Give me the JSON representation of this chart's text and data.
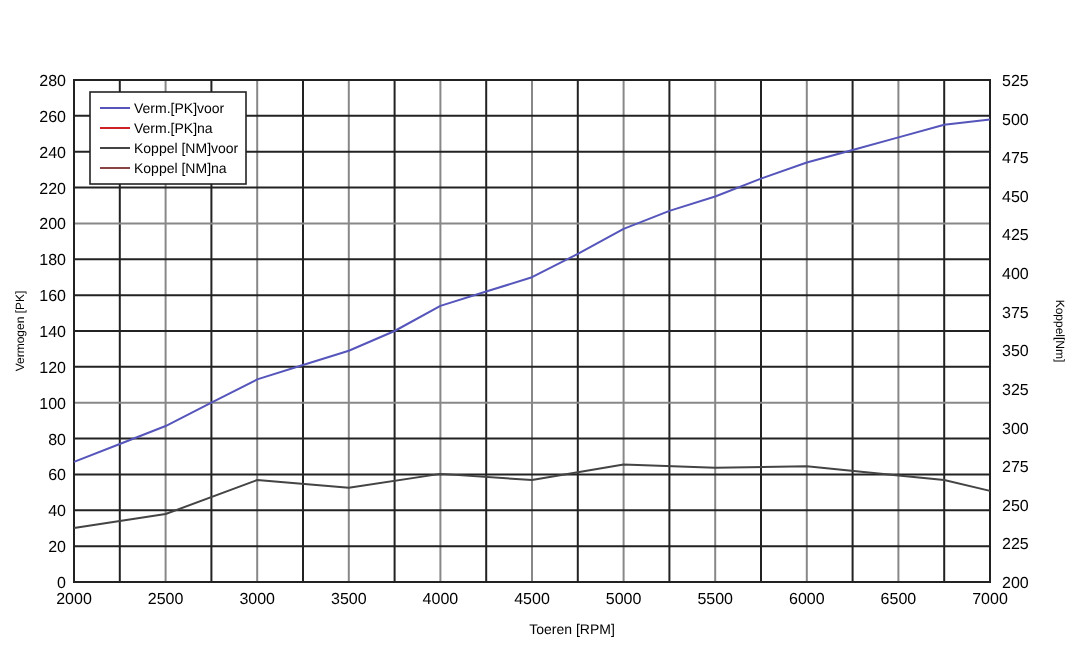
{
  "chart_data": {
    "type": "line",
    "xlabel": "Toeren [RPM]",
    "ylabel": "Vermogen [PK]",
    "y2label": "Koppel[Nm]",
    "xlim": [
      2000,
      7000
    ],
    "xticks": [
      2000,
      {
        "value": 2250,
        "label": null
      },
      2500,
      {
        "value": 2750,
        "label": null
      },
      3000,
      {
        "value": 3250,
        "label": null
      },
      3500,
      {
        "value": 3750,
        "label": null
      },
      4000,
      {
        "value": 4250,
        "label": null
      },
      4500,
      {
        "value": 4750,
        "label": null
      },
      5000,
      {
        "value": 5250,
        "label": null
      },
      5500,
      {
        "value": 5750,
        "label": null
      },
      6000,
      {
        "value": 6250,
        "label": null
      },
      6500,
      {
        "value": 6750,
        "label": null
      },
      7000
    ],
    "ylim": [
      0,
      280
    ],
    "yticks": [
      0,
      20,
      40,
      60,
      80,
      100,
      120,
      140,
      160,
      180,
      200,
      220,
      240,
      260,
      280
    ],
    "y2lim": [
      200,
      525
    ],
    "y2ticks": [
      200,
      225,
      250,
      275,
      300,
      325,
      350,
      375,
      400,
      425,
      450,
      475,
      500,
      525
    ],
    "grid": true,
    "legend": "top left",
    "series": [
      {
        "name": "Verm.[PK]voor",
        "color": "#5555bb",
        "x": [
          2000,
          2250,
          2500,
          2750,
          3000,
          3250,
          3500,
          3750,
          4000,
          4250,
          4500,
          4750,
          5000,
          5250,
          5500,
          5750,
          6000,
          6250,
          6500,
          6750,
          7000
        ],
        "values": [
          67,
          77,
          87,
          100,
          113,
          121,
          129,
          140,
          154,
          162,
          170,
          183,
          197,
          207,
          215,
          225,
          234,
          241,
          248,
          255,
          258
        ]
      },
      {
        "name": "Verm.[PK]na",
        "color": "#cc2222"
      },
      {
        "name": "Koppel [NM]voor",
        "color": "#444444",
        "axis": "y2",
        "x": [
          2000,
          2500,
          3000,
          3500,
          4000,
          4500,
          5000,
          5500,
          6000,
          6500,
          6750,
          7000
        ],
        "values": [
          235,
          244,
          266,
          261,
          270,
          266,
          276,
          274,
          275,
          269,
          266,
          259
        ]
      },
      {
        "name": "Koppel [NM]na",
        "color": "#884444",
        "axis": "y2"
      }
    ]
  }
}
